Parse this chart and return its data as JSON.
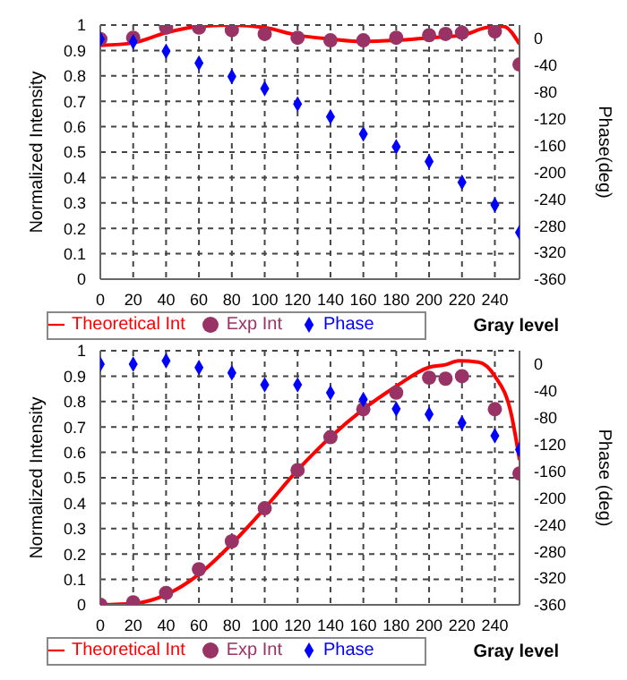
{
  "chart_data": [
    {
      "type": "scatter",
      "xlabel": "Gray level",
      "ylabel": "Normalized Intensity",
      "y2label": "Phase(deg)",
      "xlim": [
        0,
        255
      ],
      "xticks": [
        0,
        20,
        40,
        60,
        80,
        100,
        120,
        140,
        160,
        180,
        200,
        220,
        240
      ],
      "ylim": [
        0,
        1
      ],
      "yticks": [
        0,
        0.1,
        0.2,
        0.3,
        0.4,
        0.5,
        0.6,
        0.7,
        0.8,
        0.9,
        1
      ],
      "y2lim": [
        -360,
        20
      ],
      "y2ticks": [
        -360,
        -320,
        -280,
        -240,
        -200,
        -160,
        -120,
        -80,
        -40,
        0
      ],
      "grid": true,
      "legend": "bottom left",
      "series": [
        {
          "name": "Theoretical Int",
          "type": "line",
          "color": "#ff0000",
          "marker": "none",
          "x": [
            0,
            20,
            40,
            60,
            80,
            100,
            120,
            140,
            160,
            180,
            200,
            220,
            235,
            245,
            255
          ],
          "values": [
            0.92,
            0.93,
            0.97,
            0.995,
            1.0,
            0.99,
            0.96,
            0.945,
            0.935,
            0.94,
            0.95,
            0.96,
            0.99,
            0.995,
            0.925
          ]
        },
        {
          "name": "Exp Int",
          "color": "#993366",
          "marker": "circle",
          "x": [
            0,
            20,
            40,
            60,
            80,
            100,
            120,
            140,
            160,
            180,
            200,
            210,
            220,
            240,
            255
          ],
          "values": [
            0.945,
            0.95,
            0.99,
            0.99,
            0.98,
            0.965,
            0.95,
            0.94,
            0.94,
            0.95,
            0.96,
            0.965,
            0.97,
            0.975,
            0.845
          ]
        },
        {
          "name": "Phase",
          "color": "#0000ff",
          "marker": "diamond",
          "axis": "y2",
          "x": [
            0,
            20,
            40,
            60,
            80,
            100,
            120,
            140,
            160,
            180,
            200,
            220,
            240,
            255
          ],
          "values": [
            -1,
            -5,
            -19,
            -37,
            -57,
            -75,
            -98,
            -117,
            -143,
            -162,
            -184,
            -215,
            -249,
            -290
          ]
        }
      ]
    },
    {
      "type": "scatter",
      "xlabel": "Gray level",
      "ylabel": "Normalized Intensity",
      "y2label": "Phase (deg)",
      "xlim": [
        0,
        255
      ],
      "xticks": [
        0,
        20,
        40,
        60,
        80,
        100,
        120,
        140,
        160,
        180,
        200,
        220,
        240
      ],
      "ylim": [
        0,
        1
      ],
      "yticks": [
        0,
        0.1,
        0.2,
        0.3,
        0.4,
        0.5,
        0.6,
        0.7,
        0.8,
        0.9,
        1
      ],
      "y2lim": [
        -360,
        20
      ],
      "y2ticks": [
        -360,
        -320,
        -280,
        -240,
        -200,
        -160,
        -120,
        -80,
        -40,
        0
      ],
      "grid": true,
      "legend": "bottom left",
      "series": [
        {
          "name": "Theoretical Int",
          "type": "line",
          "color": "#ff0000",
          "marker": "none",
          "x": [
            0,
            20,
            40,
            60,
            80,
            100,
            120,
            140,
            160,
            180,
            200,
            210,
            218,
            230,
            240,
            250,
            255
          ],
          "values": [
            0,
            0.005,
            0.04,
            0.12,
            0.24,
            0.38,
            0.53,
            0.66,
            0.77,
            0.86,
            0.935,
            0.945,
            0.96,
            0.955,
            0.9,
            0.75,
            0.57
          ]
        },
        {
          "name": "Exp Int",
          "color": "#993366",
          "marker": "circle",
          "x": [
            0,
            20,
            40,
            60,
            80,
            100,
            120,
            140,
            160,
            180,
            200,
            210,
            220,
            240,
            255
          ],
          "values": [
            0,
            0.01,
            0.047,
            0.14,
            0.25,
            0.38,
            0.53,
            0.66,
            0.77,
            0.835,
            0.894,
            0.89,
            0.9,
            0.77,
            0.517
          ]
        },
        {
          "name": "Phase",
          "color": "#0000ff",
          "marker": "diamond",
          "axis": "y2",
          "x": [
            0,
            20,
            40,
            60,
            80,
            100,
            120,
            140,
            160,
            180,
            200,
            220,
            240,
            255
          ],
          "values": [
            0,
            0,
            5,
            -5,
            -13,
            -31,
            -31,
            -43,
            -53,
            -67,
            -75,
            -88,
            -107,
            -128
          ]
        }
      ]
    }
  ]
}
